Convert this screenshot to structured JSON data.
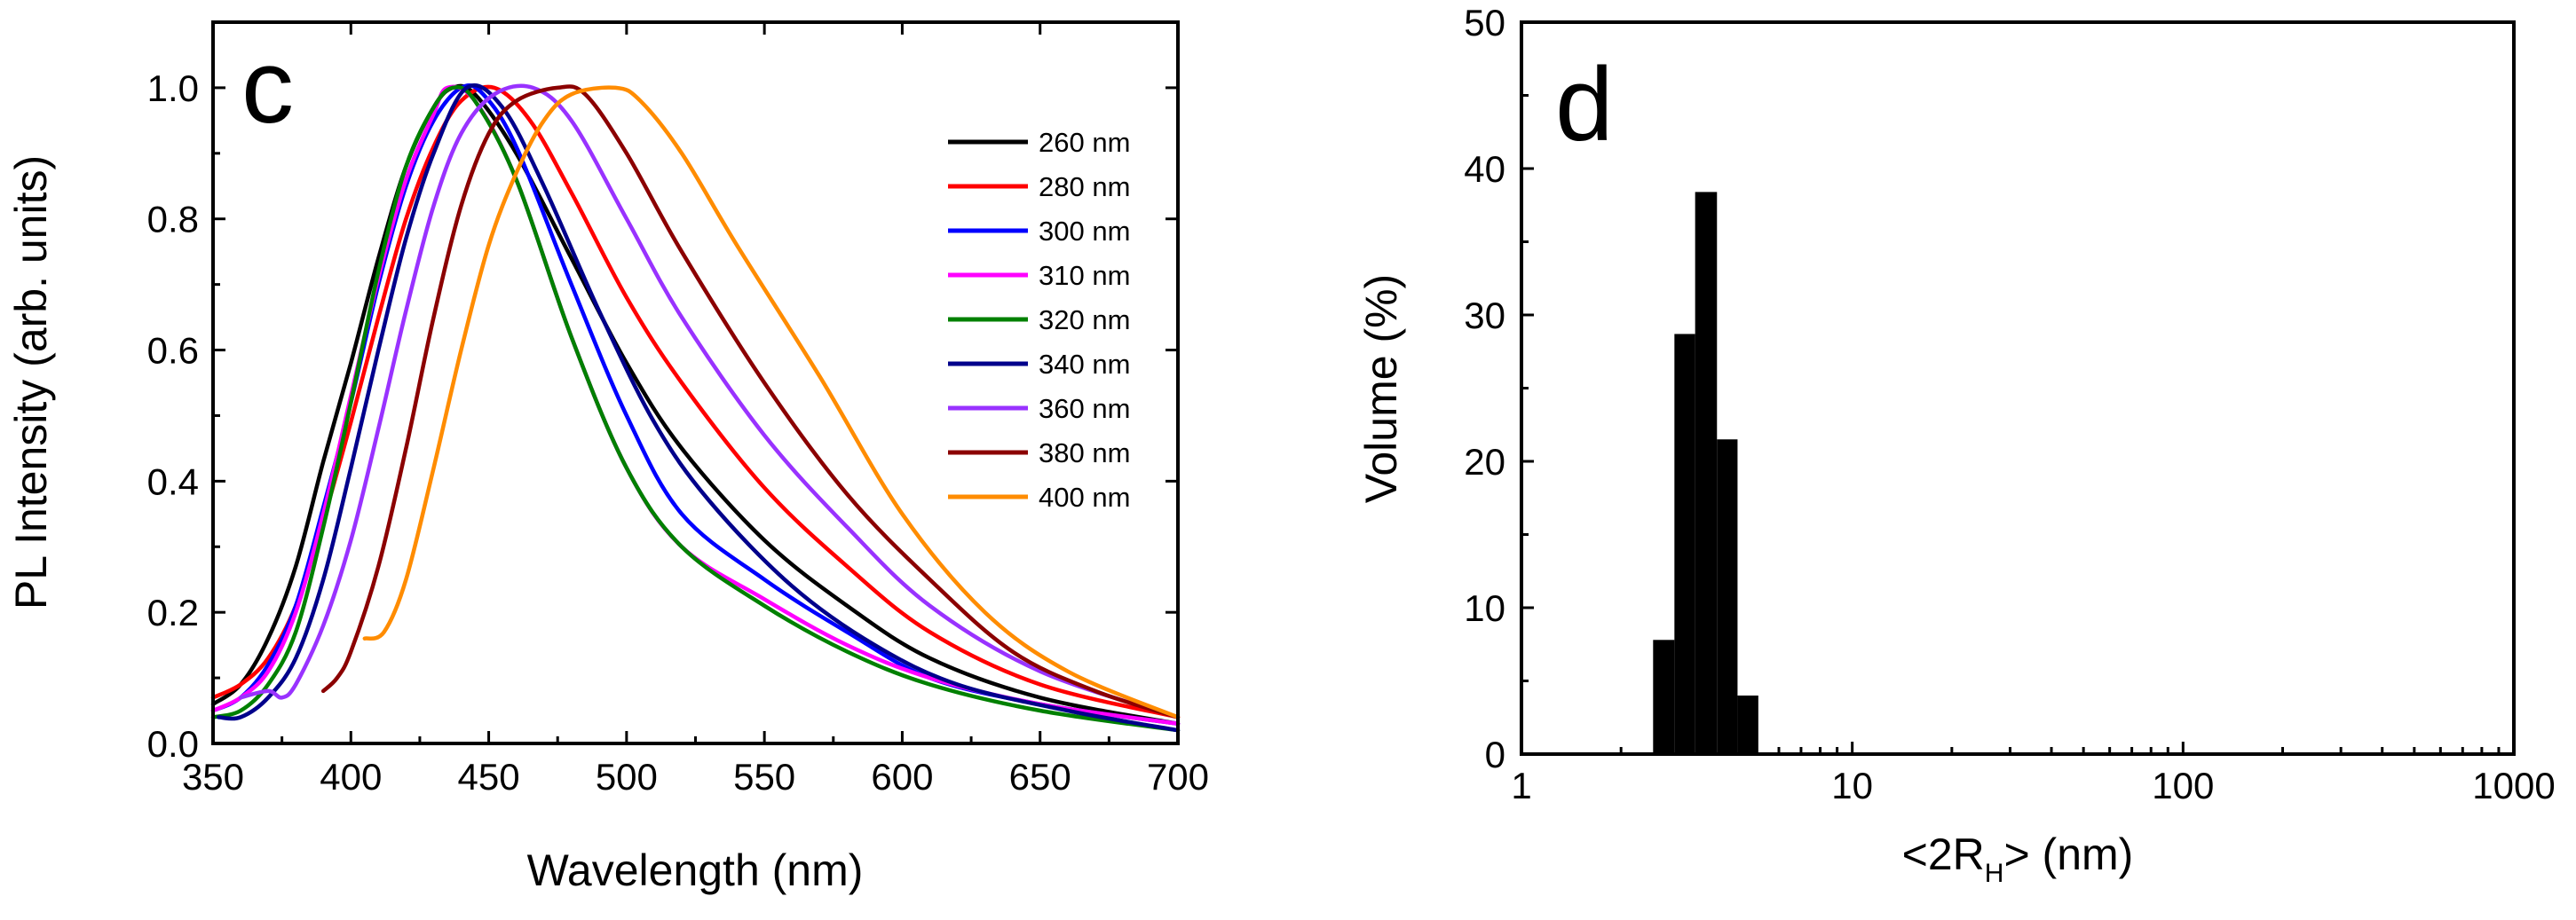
{
  "chart_data": [
    {
      "type": "line",
      "panel": "c",
      "title": "",
      "xlabel": "Wavelength (nm)",
      "ylabel": "PL Intensity (arb. units)",
      "xlim": [
        350,
        700
      ],
      "ylim": [
        0.0,
        1.1
      ],
      "xticks": [
        350,
        400,
        450,
        500,
        550,
        600,
        650,
        700
      ],
      "yticks": [
        0.0,
        0.2,
        0.4,
        0.6,
        0.8,
        1.0
      ],
      "xtick_labels": [
        "350",
        "400",
        "450",
        "500",
        "550",
        "600",
        "650",
        "700"
      ],
      "ytick_labels": [
        "0.0",
        "0.2",
        "0.4",
        "0.6",
        "0.8",
        "1.0"
      ],
      "legend_position": "right",
      "series": [
        {
          "name": "260 nm",
          "color": "#000000",
          "x": [
            350,
            360,
            370,
            380,
            390,
            400,
            410,
            420,
            430,
            437,
            445,
            460,
            480,
            500,
            520,
            550,
            580,
            610,
            650,
            700
          ],
          "y": [
            0.06,
            0.09,
            0.16,
            0.27,
            0.43,
            0.58,
            0.74,
            0.88,
            0.97,
            1.0,
            0.99,
            0.9,
            0.74,
            0.58,
            0.45,
            0.31,
            0.21,
            0.13,
            0.07,
            0.03
          ]
        },
        {
          "name": "280 nm",
          "color": "#ff0000",
          "x": [
            350,
            360,
            370,
            380,
            390,
            400,
            410,
            420,
            430,
            440,
            452,
            465,
            480,
            500,
            520,
            550,
            580,
            610,
            650,
            700
          ],
          "y": [
            0.07,
            0.09,
            0.13,
            0.21,
            0.34,
            0.49,
            0.65,
            0.8,
            0.91,
            0.98,
            1.0,
            0.95,
            0.84,
            0.68,
            0.55,
            0.39,
            0.27,
            0.17,
            0.09,
            0.04
          ]
        },
        {
          "name": "300 nm",
          "color": "#0000ff",
          "x": [
            350,
            360,
            370,
            380,
            390,
            400,
            410,
            420,
            430,
            440,
            448,
            460,
            480,
            500,
            520,
            550,
            580,
            610,
            650,
            700
          ],
          "y": [
            0.05,
            0.07,
            0.12,
            0.21,
            0.36,
            0.52,
            0.7,
            0.85,
            0.95,
            1.0,
            0.99,
            0.91,
            0.7,
            0.5,
            0.35,
            0.25,
            0.17,
            0.1,
            0.06,
            0.03
          ]
        },
        {
          "name": "310 nm",
          "color": "#ff00ff",
          "x": [
            350,
            360,
            370,
            380,
            390,
            400,
            410,
            420,
            430,
            435,
            445,
            460,
            480,
            500,
            520,
            550,
            580,
            610,
            650,
            700
          ],
          "y": [
            0.05,
            0.07,
            0.11,
            0.2,
            0.35,
            0.53,
            0.71,
            0.86,
            0.96,
            1.0,
            0.98,
            0.86,
            0.62,
            0.42,
            0.3,
            0.22,
            0.15,
            0.1,
            0.06,
            0.03
          ]
        },
        {
          "name": "320 nm",
          "color": "#008000",
          "x": [
            350,
            360,
            370,
            380,
            390,
            400,
            410,
            420,
            430,
            437,
            445,
            460,
            480,
            500,
            520,
            550,
            580,
            610,
            650,
            700
          ],
          "y": [
            0.04,
            0.05,
            0.09,
            0.17,
            0.33,
            0.52,
            0.72,
            0.88,
            0.97,
            1.0,
            0.98,
            0.86,
            0.62,
            0.42,
            0.3,
            0.21,
            0.14,
            0.09,
            0.05,
            0.02
          ]
        },
        {
          "name": "340 nm",
          "color": "#00008b",
          "x": [
            352,
            360,
            370,
            380,
            390,
            400,
            410,
            420,
            430,
            442,
            455,
            470,
            490,
            510,
            530,
            560,
            590,
            620,
            660,
            700
          ],
          "y": [
            0.04,
            0.04,
            0.07,
            0.13,
            0.25,
            0.42,
            0.6,
            0.77,
            0.9,
            1.0,
            0.97,
            0.85,
            0.66,
            0.49,
            0.37,
            0.24,
            0.15,
            0.09,
            0.05,
            0.02
          ]
        },
        {
          "name": "360 nm",
          "color": "#9932ff",
          "x": [
            360,
            370,
            375,
            380,
            390,
            400,
            410,
            420,
            430,
            440,
            452,
            466,
            480,
            500,
            520,
            550,
            580,
            610,
            650,
            700
          ],
          "y": [
            0.07,
            0.08,
            0.07,
            0.09,
            0.18,
            0.31,
            0.48,
            0.66,
            0.82,
            0.93,
            0.99,
            1.0,
            0.95,
            0.8,
            0.65,
            0.47,
            0.33,
            0.21,
            0.11,
            0.04
          ]
        },
        {
          "name": "380 nm",
          "color": "#8b0000",
          "x": [
            390,
            395,
            400,
            410,
            420,
            430,
            440,
            450,
            460,
            475,
            485,
            500,
            520,
            550,
            580,
            610,
            640,
            670,
            700
          ],
          "y": [
            0.08,
            0.1,
            0.14,
            0.27,
            0.45,
            0.65,
            0.82,
            0.93,
            0.98,
            1.0,
            0.99,
            0.9,
            0.75,
            0.55,
            0.38,
            0.25,
            0.14,
            0.08,
            0.04
          ]
        },
        {
          "name": "400 nm",
          "color": "#ff8c00",
          "x": [
            405,
            412,
            420,
            430,
            440,
            450,
            460,
            470,
            480,
            496,
            505,
            520,
            540,
            570,
            600,
            630,
            660,
            700
          ],
          "y": [
            0.16,
            0.17,
            0.25,
            0.42,
            0.6,
            0.76,
            0.87,
            0.95,
            0.99,
            1.0,
            0.98,
            0.9,
            0.76,
            0.56,
            0.35,
            0.2,
            0.11,
            0.04
          ]
        }
      ]
    },
    {
      "type": "bar",
      "panel": "d",
      "title": "",
      "xlabel_main": "<2R",
      "xlabel_sub": "H",
      "xlabel_tail": "> (nm)",
      "ylabel": "Volume (%)",
      "xscale": "log",
      "xlim": [
        1,
        1000
      ],
      "ylim": [
        0,
        50
      ],
      "xticks": [
        1,
        10,
        100,
        1000
      ],
      "yticks": [
        0,
        10,
        20,
        30,
        40,
        50
      ],
      "xtick_labels": [
        "1",
        "10",
        "100",
        "1000"
      ],
      "ytick_labels": [
        "0",
        "10",
        "20",
        "30",
        "40",
        "50"
      ],
      "bars": [
        {
          "left": 2.5,
          "right": 2.9,
          "value": 7.8
        },
        {
          "left": 2.9,
          "right": 3.35,
          "value": 28.7
        },
        {
          "left": 3.35,
          "right": 3.9,
          "value": 38.4
        },
        {
          "left": 3.9,
          "right": 4.5,
          "value": 21.5
        },
        {
          "left": 4.5,
          "right": 5.2,
          "value": 4.0
        }
      ]
    }
  ]
}
